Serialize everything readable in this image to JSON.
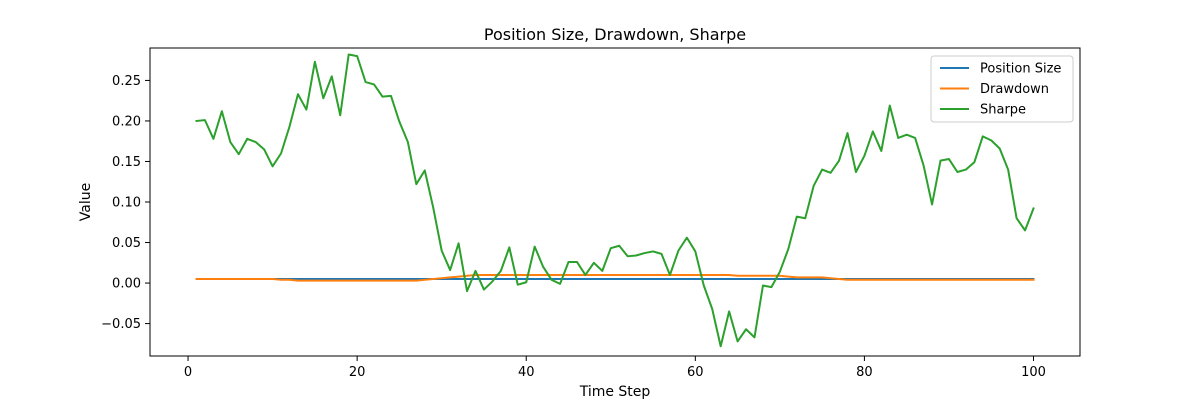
{
  "chart_data": {
    "type": "line",
    "title": "Position Size, Drawdown, Sharpe",
    "xlabel": "Time Step",
    "ylabel": "Value",
    "xlim": [
      -4.5,
      105.5
    ],
    "ylim": [
      -0.09,
      0.29
    ],
    "xticks": [
      0,
      20,
      40,
      60,
      80,
      100
    ],
    "yticks": [
      -0.05,
      0.0,
      0.05,
      0.1,
      0.15,
      0.2,
      0.25
    ],
    "ytick_labels": [
      "−0.05",
      "0.00",
      "0.05",
      "0.10",
      "0.15",
      "0.20",
      "0.25"
    ],
    "grid": false,
    "legend_position": "top-right",
    "x": [
      1,
      2,
      3,
      4,
      5,
      6,
      7,
      8,
      9,
      10,
      11,
      12,
      13,
      14,
      15,
      16,
      17,
      18,
      19,
      20,
      21,
      22,
      23,
      24,
      25,
      26,
      27,
      28,
      29,
      30,
      31,
      32,
      33,
      34,
      35,
      36,
      37,
      38,
      39,
      40,
      41,
      42,
      43,
      44,
      45,
      46,
      47,
      48,
      49,
      50,
      51,
      52,
      53,
      54,
      55,
      56,
      57,
      58,
      59,
      60,
      61,
      62,
      63,
      64,
      65,
      66,
      67,
      68,
      69,
      70,
      71,
      72,
      73,
      74,
      75,
      76,
      77,
      78,
      79,
      80,
      81,
      82,
      83,
      84,
      85,
      86,
      87,
      88,
      89,
      90,
      91,
      92,
      93,
      94,
      95,
      96,
      97,
      98,
      99,
      100
    ],
    "series": [
      {
        "name": "Position Size",
        "color": "#1f77b4",
        "values": [
          0.005,
          0.005,
          0.005,
          0.005,
          0.005,
          0.005,
          0.005,
          0.005,
          0.005,
          0.005,
          0.005,
          0.005,
          0.005,
          0.005,
          0.005,
          0.005,
          0.005,
          0.005,
          0.005,
          0.005,
          0.005,
          0.005,
          0.005,
          0.005,
          0.005,
          0.005,
          0.005,
          0.005,
          0.005,
          0.005,
          0.005,
          0.005,
          0.005,
          0.005,
          0.005,
          0.005,
          0.005,
          0.005,
          0.005,
          0.005,
          0.005,
          0.005,
          0.005,
          0.005,
          0.005,
          0.005,
          0.005,
          0.005,
          0.005,
          0.005,
          0.005,
          0.005,
          0.005,
          0.005,
          0.005,
          0.005,
          0.005,
          0.005,
          0.005,
          0.005,
          0.005,
          0.005,
          0.005,
          0.005,
          0.005,
          0.005,
          0.005,
          0.005,
          0.005,
          0.005,
          0.005,
          0.005,
          0.005,
          0.005,
          0.005,
          0.005,
          0.005,
          0.005,
          0.005,
          0.005,
          0.005,
          0.005,
          0.005,
          0.005,
          0.005,
          0.005,
          0.005,
          0.005,
          0.005,
          0.005,
          0.005,
          0.005,
          0.005,
          0.005,
          0.005,
          0.005,
          0.005,
          0.005,
          0.005,
          0.005
        ]
      },
      {
        "name": "Drawdown",
        "color": "#ff7f0e",
        "values": [
          0.005,
          0.005,
          0.005,
          0.005,
          0.005,
          0.005,
          0.005,
          0.005,
          0.005,
          0.005,
          0.004,
          0.004,
          0.003,
          0.003,
          0.003,
          0.003,
          0.003,
          0.003,
          0.003,
          0.003,
          0.003,
          0.003,
          0.003,
          0.003,
          0.003,
          0.003,
          0.003,
          0.004,
          0.005,
          0.006,
          0.007,
          0.008,
          0.009,
          0.01,
          0.01,
          0.01,
          0.01,
          0.01,
          0.01,
          0.01,
          0.01,
          0.01,
          0.01,
          0.01,
          0.01,
          0.01,
          0.01,
          0.01,
          0.01,
          0.01,
          0.01,
          0.01,
          0.01,
          0.01,
          0.01,
          0.01,
          0.01,
          0.01,
          0.01,
          0.01,
          0.01,
          0.01,
          0.01,
          0.01,
          0.009,
          0.009,
          0.009,
          0.009,
          0.009,
          0.009,
          0.008,
          0.007,
          0.007,
          0.007,
          0.007,
          0.006,
          0.005,
          0.004,
          0.004,
          0.004,
          0.004,
          0.004,
          0.004,
          0.004,
          0.004,
          0.004,
          0.004,
          0.004,
          0.004,
          0.004,
          0.004,
          0.004,
          0.004,
          0.004,
          0.004,
          0.004,
          0.004,
          0.004,
          0.004,
          0.004
        ]
      },
      {
        "name": "Sharpe",
        "color": "#2ca02c",
        "values": [
          0.2,
          0.201,
          0.178,
          0.212,
          0.174,
          0.159,
          0.178,
          0.174,
          0.165,
          0.144,
          0.16,
          0.193,
          0.233,
          0.214,
          0.273,
          0.228,
          0.255,
          0.207,
          0.282,
          0.28,
          0.248,
          0.245,
          0.23,
          0.231,
          0.199,
          0.174,
          0.122,
          0.139,
          0.093,
          0.04,
          0.016,
          0.049,
          -0.01,
          0.015,
          -0.008,
          0.002,
          0.015,
          0.044,
          -0.002,
          0.001,
          0.045,
          0.02,
          0.004,
          -0.001,
          0.026,
          0.026,
          0.01,
          0.025,
          0.015,
          0.043,
          0.046,
          0.033,
          0.034,
          0.037,
          0.039,
          0.036,
          0.01,
          0.04,
          0.056,
          0.039,
          -0.003,
          -0.032,
          -0.078,
          -0.035,
          -0.072,
          -0.057,
          -0.067,
          -0.003,
          -0.005,
          0.014,
          0.042,
          0.082,
          0.08,
          0.12,
          0.14,
          0.136,
          0.151,
          0.185,
          0.137,
          0.157,
          0.187,
          0.163,
          0.219,
          0.179,
          0.183,
          0.179,
          0.145,
          0.097,
          0.151,
          0.153,
          0.137,
          0.14,
          0.149,
          0.181,
          0.176,
          0.166,
          0.14,
          0.08,
          0.065,
          0.092
        ]
      }
    ]
  }
}
